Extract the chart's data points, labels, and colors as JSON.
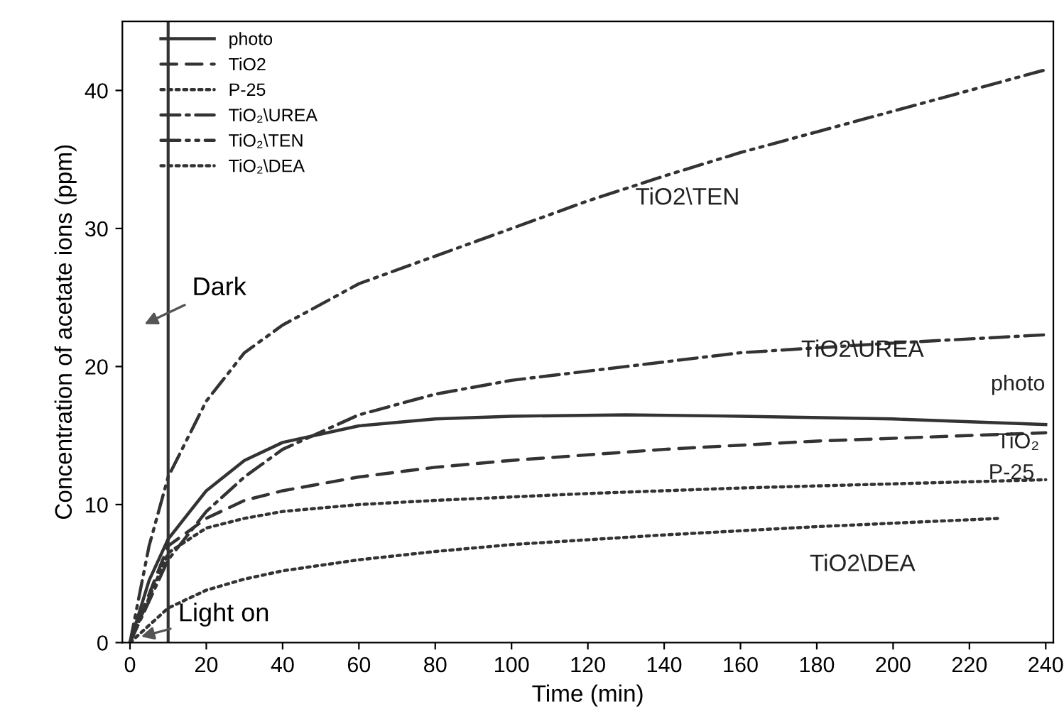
{
  "chart_data": {
    "type": "line",
    "xlabel": "Time (min)",
    "ylabel": "Concentration of acetate ions (ppm)",
    "xlim": [
      -2,
      242
    ],
    "xticks": [
      0,
      20,
      40,
      60,
      80,
      100,
      120,
      140,
      160,
      180,
      200,
      220,
      240
    ],
    "ylim": [
      0,
      45
    ],
    "yticks": [
      0,
      10,
      20,
      30,
      40
    ],
    "grid": false,
    "legend": "top left",
    "marker": "none",
    "series": [
      {
        "name": "photo",
        "color": "#333333",
        "line_style": "solid",
        "x": [
          0,
          5,
          10,
          20,
          30,
          40,
          60,
          80,
          100,
          130,
          160,
          200,
          240
        ],
        "values": [
          0,
          4.5,
          7.5,
          11,
          13.2,
          14.5,
          15.7,
          16.2,
          16.4,
          16.5,
          16.4,
          16.2,
          15.8
        ]
      },
      {
        "name": "TiO2",
        "color": "#333333",
        "line_style": "dashed",
        "x": [
          0,
          10,
          20,
          30,
          40,
          60,
          80,
          100,
          140,
          180,
          240
        ],
        "values": [
          0,
          7,
          9,
          10.3,
          11,
          12,
          12.7,
          13.2,
          14,
          14.6,
          15.2
        ]
      },
      {
        "name": "P-25",
        "color": "#333333",
        "line_style": "dotted",
        "x": [
          0,
          10,
          20,
          30,
          40,
          60,
          80,
          120,
          160,
          200,
          240
        ],
        "values": [
          0,
          6.5,
          8.3,
          9,
          9.5,
          10,
          10.3,
          10.8,
          11.2,
          11.5,
          11.8
        ]
      },
      {
        "name": "TiO₂\\UREA",
        "color": "#333333",
        "line_style": "dashdot",
        "x": [
          0,
          10,
          20,
          30,
          40,
          60,
          80,
          100,
          130,
          160,
          200,
          240
        ],
        "values": [
          0,
          6,
          9.5,
          12,
          14,
          16.5,
          18,
          19,
          20,
          21,
          21.7,
          22.3
        ]
      },
      {
        "name": "TiO₂\\TEN",
        "color": "#333333",
        "line_style": "dashdotdot",
        "x": [
          0,
          5,
          10,
          20,
          30,
          40,
          60,
          80,
          100,
          120,
          140,
          160,
          180,
          200,
          220,
          240
        ],
        "values": [
          0,
          7,
          12,
          17.5,
          21,
          23,
          26,
          28,
          30,
          32,
          33.8,
          35.5,
          37,
          38.5,
          40,
          41.5
        ]
      },
      {
        "name": "TiO₂\\DEA",
        "color": "#333333",
        "line_style": "dotted",
        "x": [
          0,
          10,
          20,
          30,
          40,
          60,
          80,
          100,
          140,
          180,
          228
        ],
        "values": [
          0,
          2.5,
          3.8,
          4.6,
          5.2,
          6,
          6.6,
          7.1,
          7.8,
          8.4,
          9
        ]
      }
    ],
    "ref_lines": [
      {
        "axis": "x",
        "value": 10,
        "color": "#333333",
        "line_style": "solid"
      }
    ],
    "annotations": [
      "Dark",
      "Light on",
      "TiO2\\TEN",
      "TiO2\\UREA",
      "photo",
      "TiO₂",
      "P-25",
      "TiO2\\DEA"
    ]
  }
}
